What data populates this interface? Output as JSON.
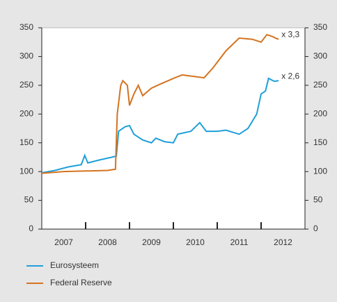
{
  "chart_data": {
    "type": "line",
    "xlim": [
      2007,
      2013
    ],
    "xticks": [
      {
        "value": 2007.5,
        "label": "2007"
      },
      {
        "value": 2008.5,
        "label": "2008"
      },
      {
        "value": 2009.5,
        "label": "2009"
      },
      {
        "value": 2010.5,
        "label": "2010"
      },
      {
        "value": 2011.5,
        "label": "2011"
      },
      {
        "value": 2012.5,
        "label": "2012"
      }
    ],
    "ylim": [
      0,
      350
    ],
    "yticks": [
      0,
      50,
      100,
      150,
      200,
      250,
      300,
      350
    ],
    "y2lim": [
      0,
      350
    ],
    "y2ticks": [
      0,
      50,
      100,
      150,
      200,
      250,
      300,
      350
    ],
    "legend": "bottom",
    "series": [
      {
        "name": "Eurosysteem",
        "color": "#1e9fd9",
        "annotation": "x 2,6",
        "x": [
          2007.0,
          2007.3,
          2007.6,
          2007.9,
          2007.98,
          2008.05,
          2008.3,
          2008.6,
          2008.7,
          2008.75,
          2008.9,
          2009.0,
          2009.1,
          2009.3,
          2009.5,
          2009.6,
          2009.8,
          2010.0,
          2010.1,
          2010.4,
          2010.6,
          2010.75,
          2011.0,
          2011.2,
          2011.5,
          2011.7,
          2011.9,
          2012.0,
          2012.1,
          2012.17,
          2012.3,
          2012.4
        ],
        "values": [
          98,
          102,
          108,
          112,
          128,
          115,
          120,
          125,
          127,
          170,
          178,
          180,
          165,
          155,
          150,
          158,
          152,
          150,
          165,
          170,
          185,
          170,
          170,
          172,
          165,
          175,
          200,
          235,
          240,
          262,
          257,
          258
        ]
      },
      {
        "name": "Federal Reserve",
        "color": "#d4731f",
        "annotation": "x 3,3",
        "x": [
          2007.0,
          2007.5,
          2008.0,
          2008.5,
          2008.68,
          2008.72,
          2008.8,
          2008.85,
          2008.95,
          2009.0,
          2009.1,
          2009.2,
          2009.3,
          2009.5,
          2009.7,
          2010.0,
          2010.2,
          2010.5,
          2010.7,
          2010.9,
          2011.2,
          2011.5,
          2011.8,
          2012.0,
          2012.13,
          2012.25,
          2012.33,
          2012.4
        ],
        "values": [
          97,
          100,
          101,
          102,
          104,
          200,
          250,
          258,
          250,
          215,
          235,
          250,
          232,
          245,
          252,
          262,
          268,
          265,
          263,
          280,
          310,
          332,
          330,
          325,
          338,
          335,
          332,
          330
        ]
      }
    ]
  }
}
